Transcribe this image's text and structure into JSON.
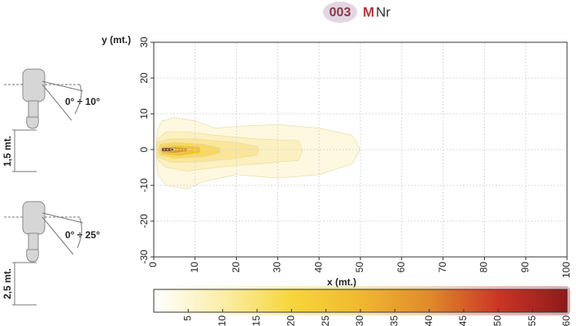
{
  "header": {
    "code": "003",
    "name_initial": "M",
    "name_rest": "Nr"
  },
  "diagrams": [
    {
      "angle": "0° ÷ 10°",
      "height": "1,5 mt."
    },
    {
      "angle": "0° ÷ 25°",
      "height": "2,5 mt."
    }
  ],
  "chart_data": [
    {
      "type": "contour",
      "x_label": "x (mt.)",
      "y_label": "y (mt.)",
      "xlim": [
        0,
        100
      ],
      "ylim": [
        -30,
        30
      ],
      "xticks": [
        0,
        10,
        20,
        30,
        40,
        50,
        60,
        70,
        80,
        90,
        100
      ],
      "yticks": [
        -30,
        -20,
        -10,
        0,
        10,
        20,
        30
      ],
      "grid": true,
      "series": [
        {
          "level": 2,
          "color": "#fdf8df",
          "x": [
            1,
            2,
            5,
            10,
            15,
            20,
            30,
            40,
            48,
            50,
            48,
            40,
            30,
            20,
            12,
            8,
            3,
            1,
            0.5
          ],
          "y": [
            6,
            8,
            9,
            8,
            6,
            6.5,
            7,
            6,
            4,
            0,
            -4,
            -7,
            -8,
            -7,
            -9,
            -11,
            -10,
            -7,
            0
          ]
        },
        {
          "level": 5,
          "color": "#fcf0c0",
          "x": [
            1,
            3,
            8,
            15,
            25,
            35,
            36,
            35,
            25,
            15,
            8,
            3,
            1,
            0.5
          ],
          "y": [
            3,
            5,
            5,
            4,
            3,
            2.5,
            0,
            -3,
            -4,
            -5,
            -6,
            -5,
            -3,
            0
          ]
        },
        {
          "level": 10,
          "color": "#fae59a",
          "x": [
            1,
            4,
            10,
            20,
            25,
            25.5,
            25,
            20,
            10,
            4,
            1,
            0.5
          ],
          "y": [
            2,
            3,
            3,
            2,
            1,
            0,
            -1.5,
            -2.5,
            -3.5,
            -3.5,
            -2,
            0
          ]
        },
        {
          "level": 15,
          "color": "#f8d860",
          "x": [
            1.5,
            5,
            12,
            16,
            16,
            12,
            5,
            1.5,
            1
          ],
          "y": [
            1.5,
            2,
            1.5,
            0.5,
            -1,
            -2,
            -2.5,
            -1.5,
            0
          ]
        },
        {
          "level": 20,
          "color": "#f3c32a",
          "x": [
            2,
            6,
            11,
            11.5,
            11,
            6,
            2,
            1.5
          ],
          "y": [
            1,
            1.2,
            0.8,
            0,
            -1,
            -1.8,
            -1.2,
            0
          ]
        },
        {
          "level": 30,
          "color": "#e09a28",
          "x": [
            2,
            5,
            8,
            8.5,
            8,
            5,
            2,
            1.5
          ],
          "y": [
            0.7,
            0.8,
            0.5,
            0,
            -0.6,
            -1,
            -0.8,
            0
          ]
        },
        {
          "level": 45,
          "color": "#7a4a1a",
          "x": [
            2,
            4,
            5.5,
            4,
            2,
            1.8
          ],
          "y": [
            0.5,
            0.5,
            0,
            -0.5,
            -0.5,
            0
          ]
        }
      ]
    },
    {
      "type": "colorbar",
      "xlim": [
        0,
        60
      ],
      "xticks": [
        5,
        10,
        15,
        20,
        25,
        30,
        35,
        40,
        45,
        50,
        55,
        60
      ],
      "stops": [
        {
          "value": 0,
          "color": "#ffffff"
        },
        {
          "value": 10,
          "color": "#fbeea8"
        },
        {
          "value": 20,
          "color": "#f7d63a"
        },
        {
          "value": 30,
          "color": "#f0b830"
        },
        {
          "value": 40,
          "color": "#e08a2a"
        },
        {
          "value": 50,
          "color": "#cc3526"
        },
        {
          "value": 60,
          "color": "#8e1a1a"
        }
      ]
    }
  ]
}
